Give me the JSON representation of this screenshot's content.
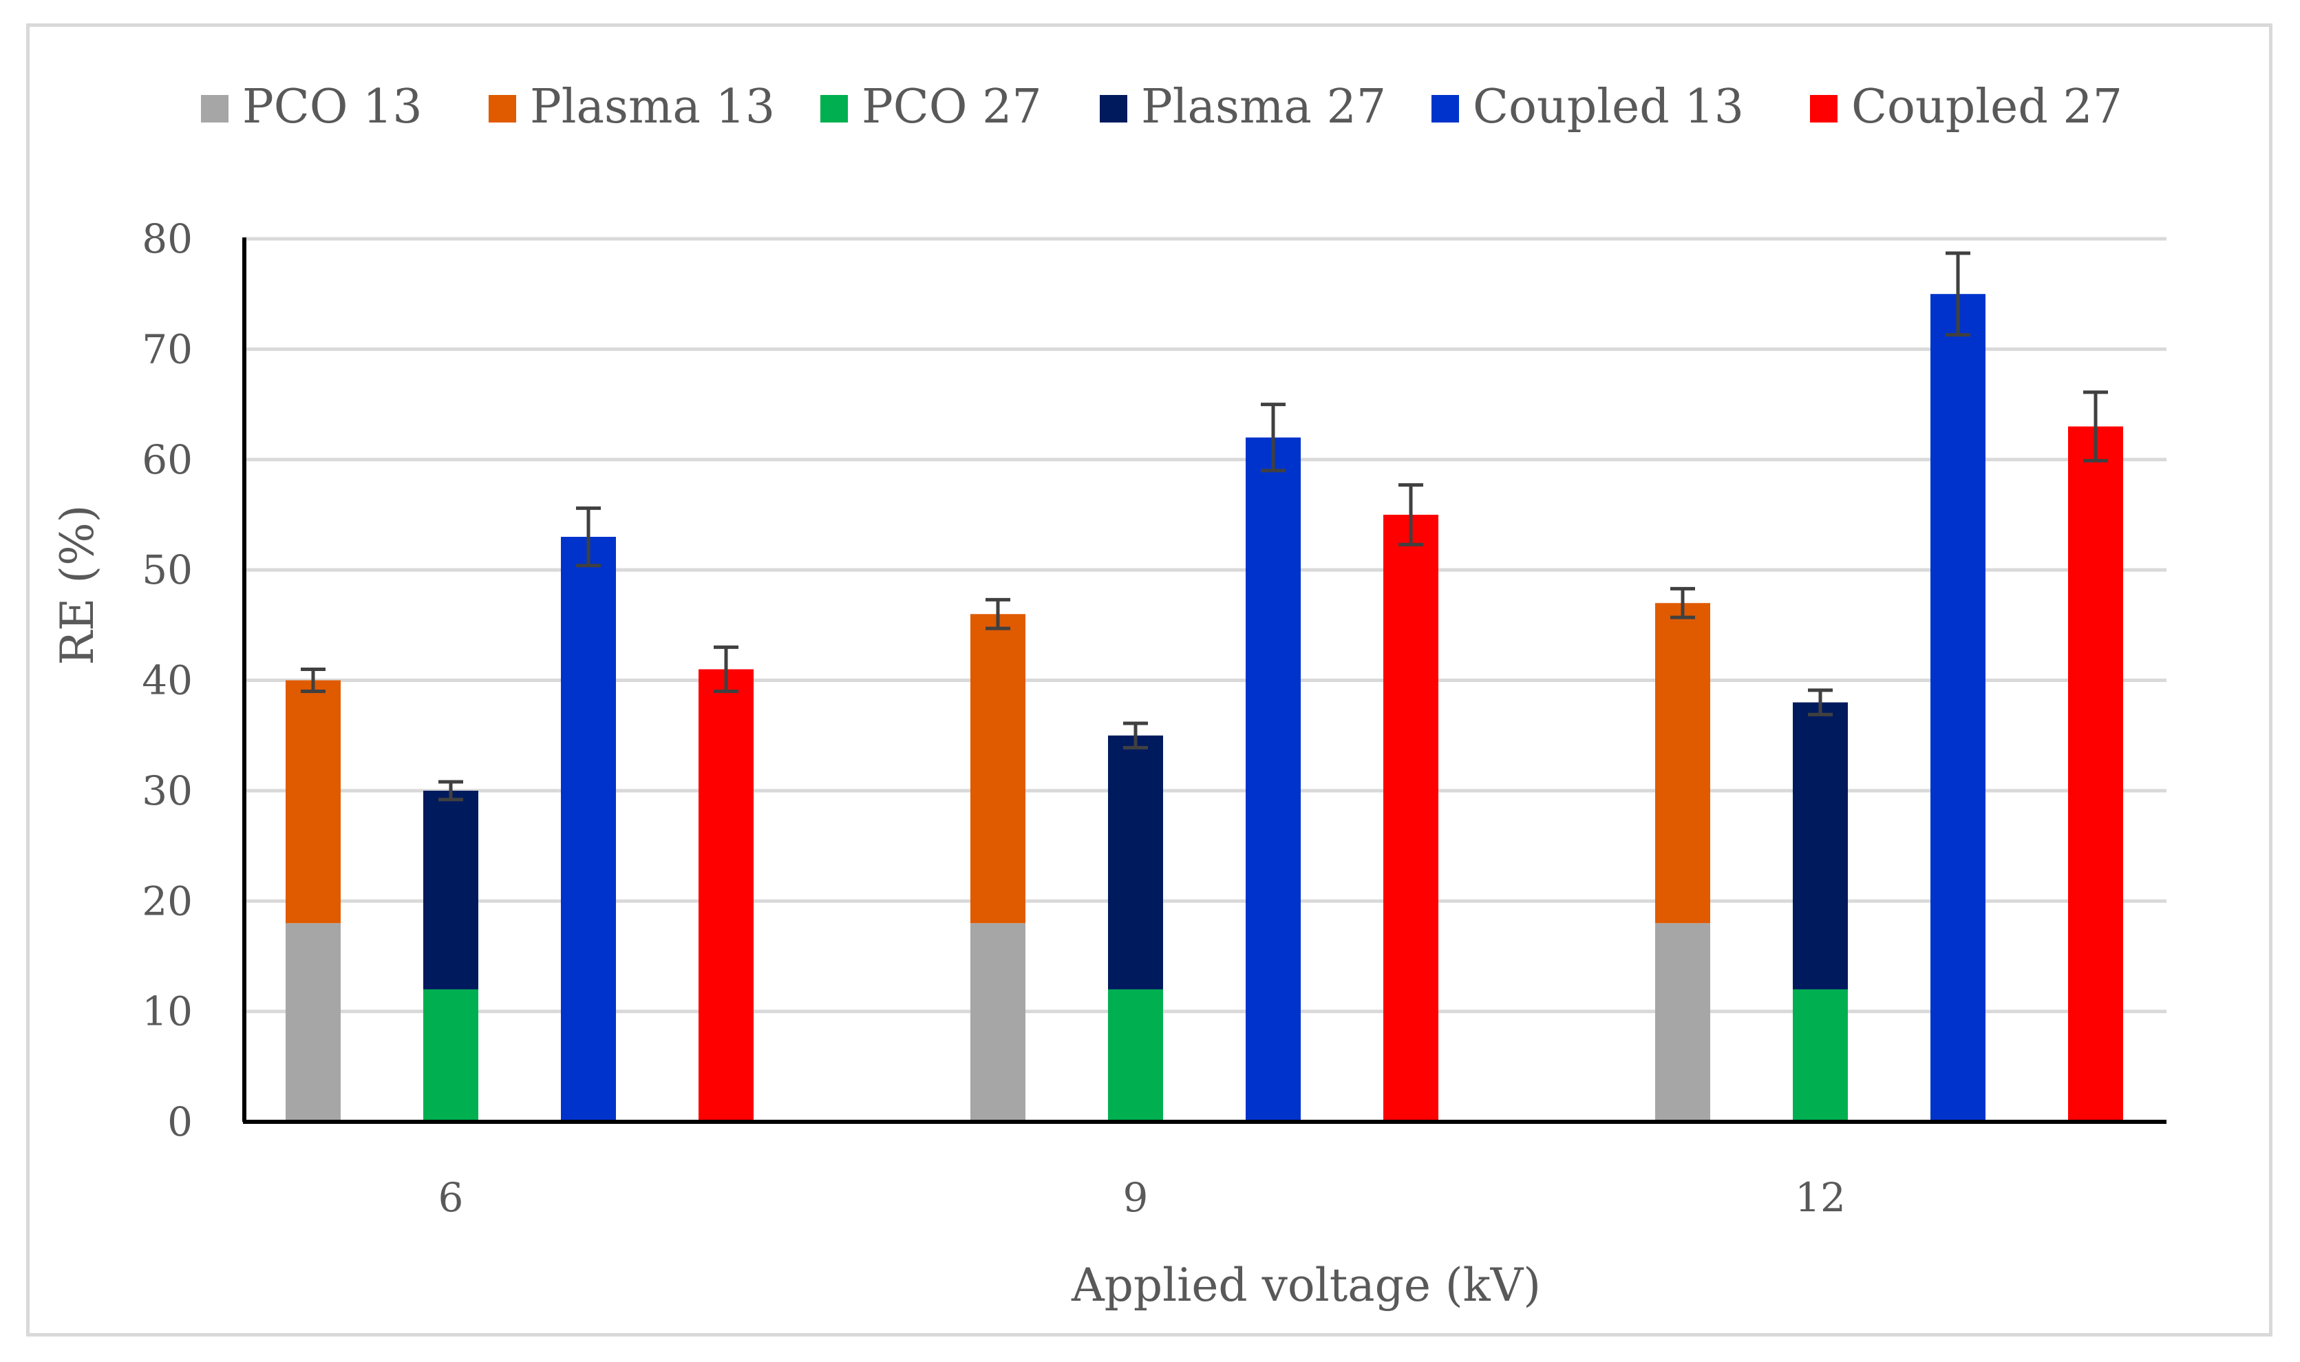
{
  "chart_data": {
    "type": "bar",
    "title": "",
    "xlabel": "Applied voltage (kV)",
    "ylabel": "RE (%)",
    "ylim": [
      0,
      80
    ],
    "yticks": [
      0,
      10,
      20,
      30,
      40,
      50,
      60,
      70,
      80
    ],
    "grid": true,
    "legend_position": "top",
    "categories": [
      "6",
      "9",
      "12"
    ],
    "series": [
      {
        "name": "PCO 13",
        "color": "#a6a6a6",
        "stack": "13",
        "values": [
          18,
          18,
          18
        ]
      },
      {
        "name": "Plasma 13",
        "color": "#e05a00",
        "stack": "13",
        "values": [
          22,
          28,
          29
        ],
        "totals": [
          40,
          46,
          47
        ],
        "errors": [
          1.0,
          1.3,
          1.3
        ]
      },
      {
        "name": "PCO 27",
        "color": "#00b050",
        "stack": "27",
        "values": [
          12,
          12,
          12
        ]
      },
      {
        "name": "Plasma 27",
        "color": "#001a5e",
        "stack": "27",
        "values": [
          18,
          23,
          26
        ],
        "totals": [
          30,
          35,
          38
        ],
        "errors": [
          0.8,
          1.1,
          1.1
        ]
      },
      {
        "name": "Coupled 13",
        "color": "#0033cc",
        "stack": "c13",
        "values": [
          53,
          62,
          75
        ],
        "totals": [
          53,
          62,
          75
        ],
        "errors": [
          2.6,
          3.0,
          3.7
        ]
      },
      {
        "name": "Coupled 27",
        "color": "#ff0000",
        "stack": "c27",
        "values": [
          41,
          55,
          63
        ],
        "totals": [
          41,
          55,
          63
        ],
        "errors": [
          2.0,
          2.7,
          3.1
        ]
      }
    ]
  },
  "colors": {
    "gridline": "#d9d9d9",
    "axis": "#000000",
    "text": "#595959",
    "error_bar": "#404040"
  }
}
